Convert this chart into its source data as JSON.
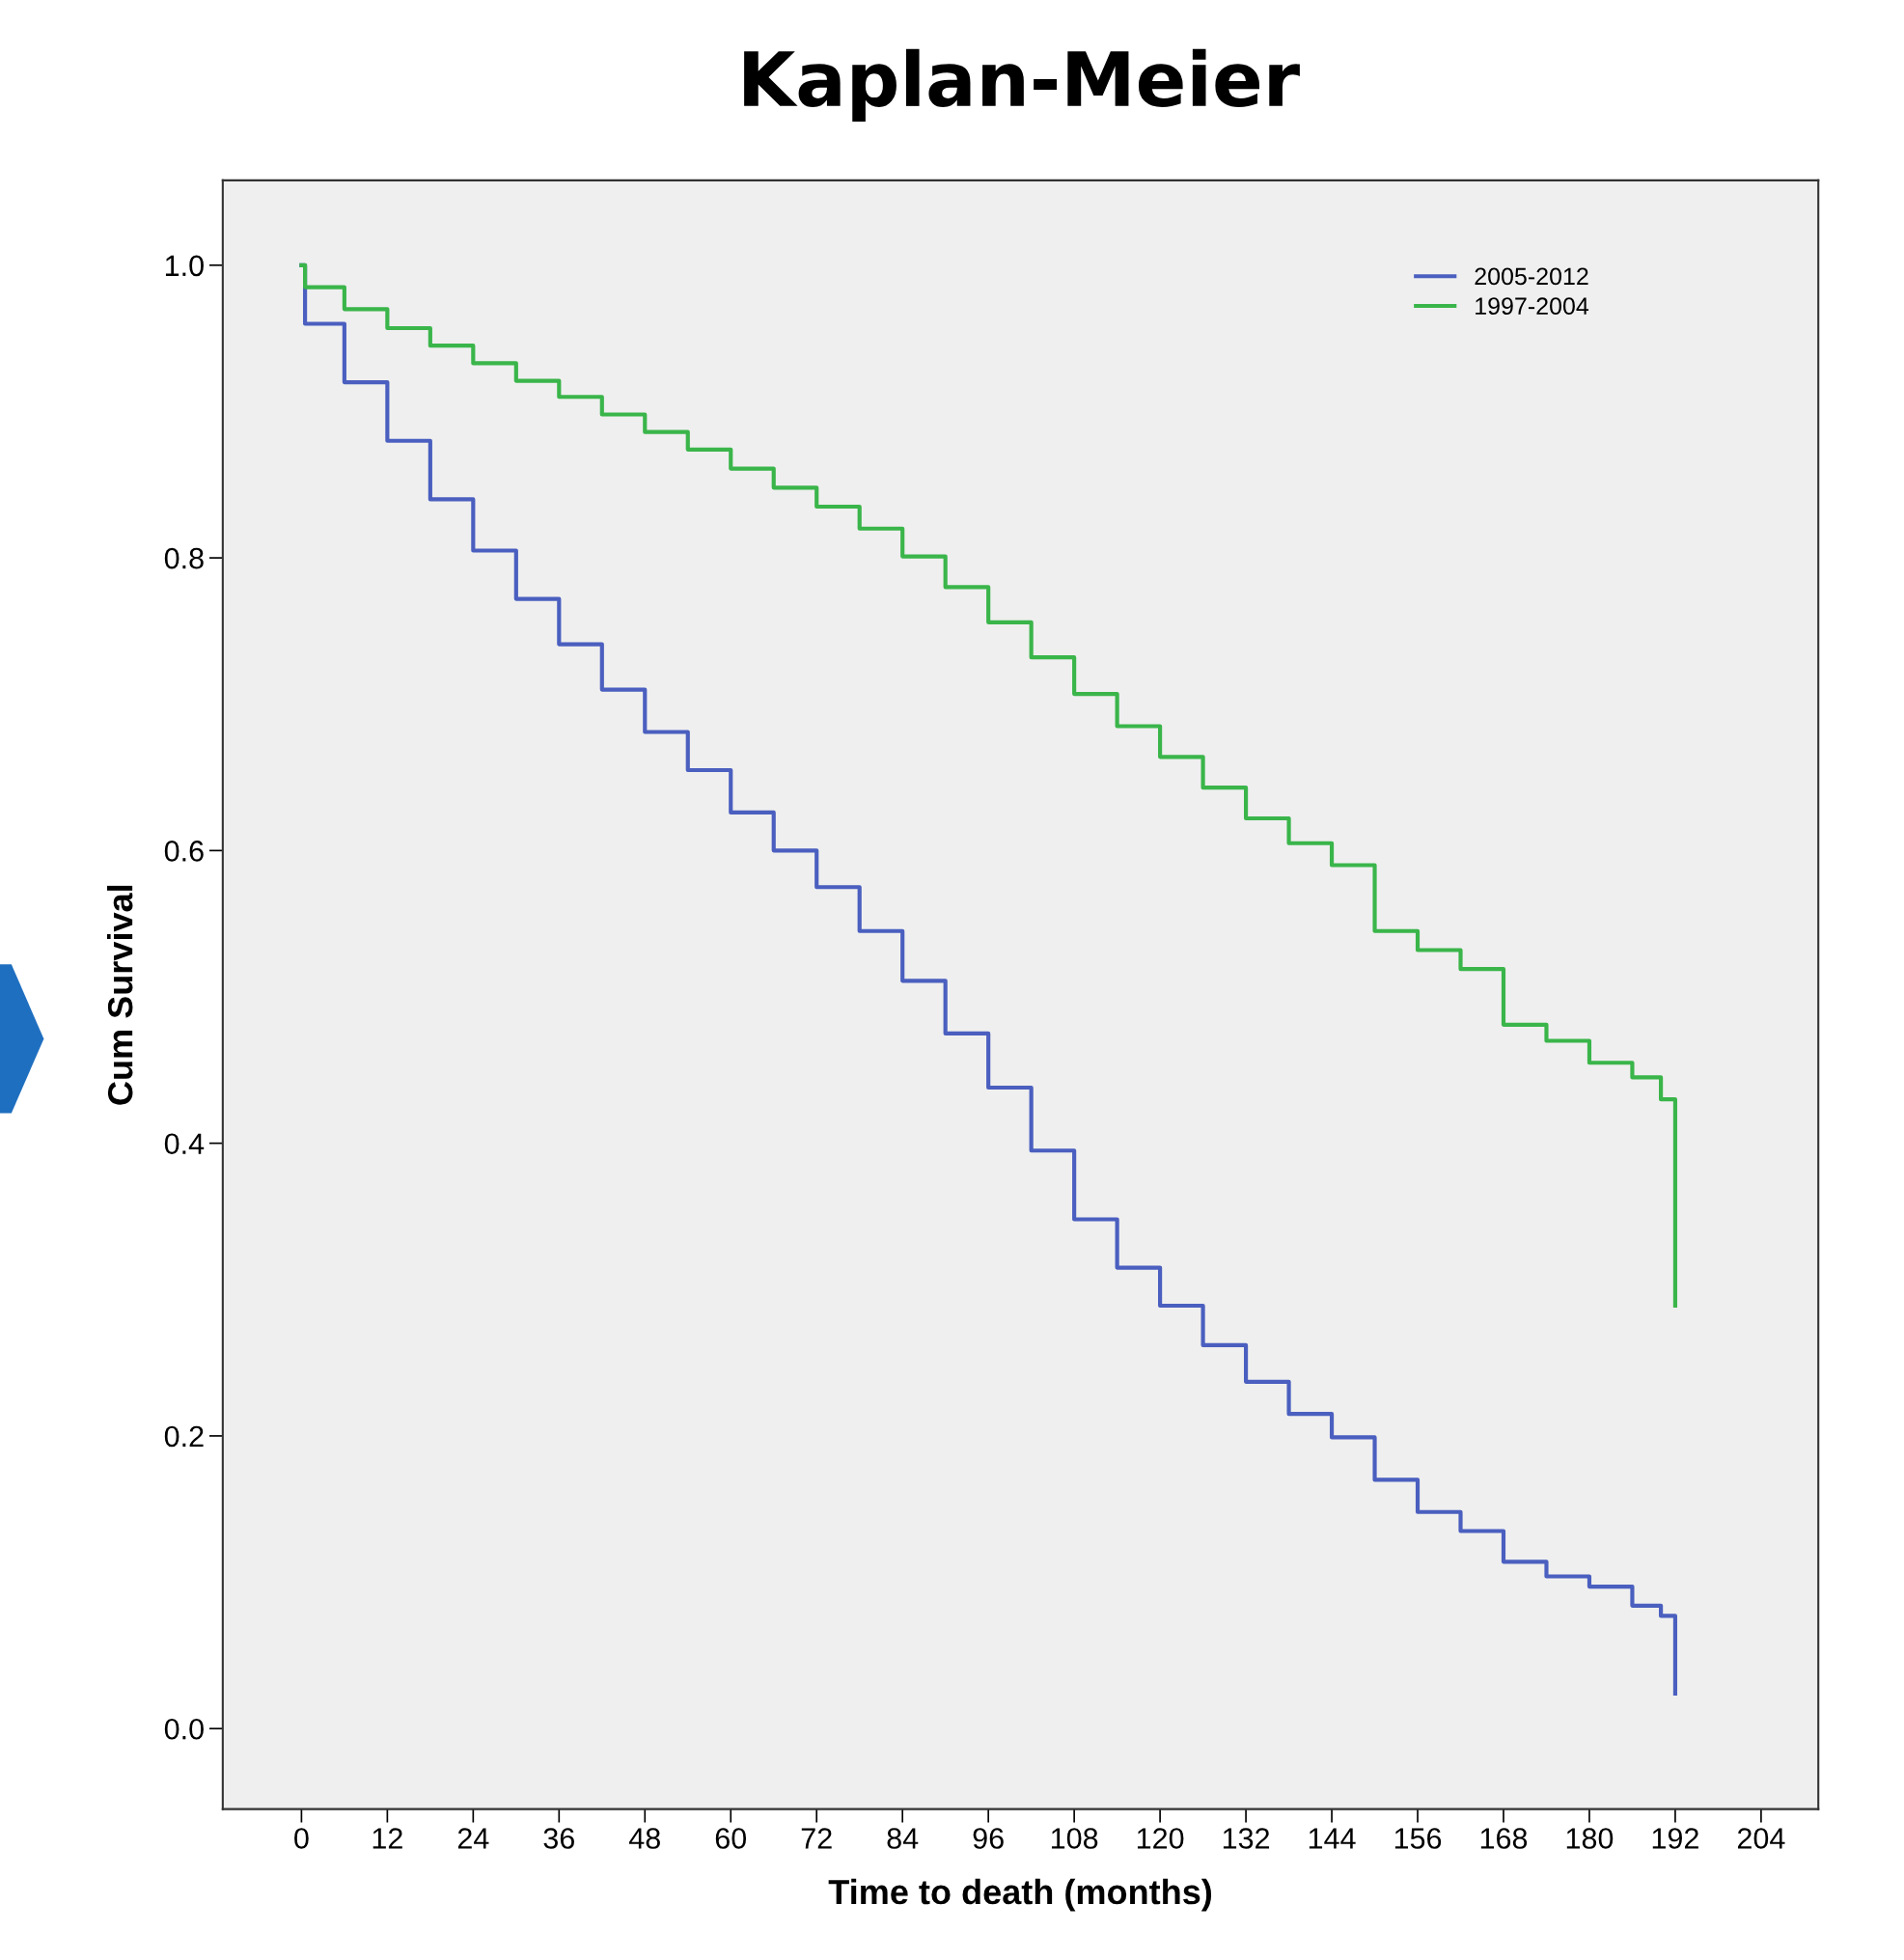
{
  "chart_data": {
    "type": "step",
    "title": "Kaplan-Meier",
    "xlabel": "Time to death (months)",
    "ylabel": "Cum Survival",
    "xlim": [
      -11,
      212
    ],
    "ylim": [
      -0.055,
      1.058
    ],
    "xticks": [
      0,
      12,
      24,
      36,
      48,
      60,
      72,
      84,
      96,
      108,
      120,
      132,
      144,
      156,
      168,
      180,
      192,
      204
    ],
    "yticks": [
      {
        "value": 0,
        "label": "0.0"
      },
      {
        "value": 0.2,
        "label": "0.2"
      },
      {
        "value": 0.4,
        "label": "0.4"
      },
      {
        "value": 0.6,
        "label": "0.6"
      },
      {
        "value": 0.8,
        "label": "0.8"
      },
      {
        "value": 1,
        "label": "1.0"
      }
    ],
    "grid": false,
    "legend": "top right",
    "line_style": "solid",
    "marker": "none",
    "series": [
      {
        "name": "2005-2012",
        "color": "#4a5fbf",
        "x": [
          0,
          0.5,
          6,
          12,
          18,
          24,
          30,
          36,
          42,
          48,
          54,
          60,
          66,
          72,
          78,
          84,
          90,
          96,
          102,
          108,
          114,
          120,
          126,
          132,
          138,
          144,
          150,
          156,
          162,
          168,
          174,
          180,
          186,
          190,
          192,
          192
        ],
        "values": [
          1.0,
          0.96,
          0.92,
          0.88,
          0.84,
          0.805,
          0.772,
          0.741,
          0.71,
          0.681,
          0.655,
          0.626,
          0.6,
          0.575,
          0.545,
          0.511,
          0.475,
          0.438,
          0.395,
          0.348,
          0.315,
          0.289,
          0.262,
          0.237,
          0.215,
          0.199,
          0.17,
          0.148,
          0.135,
          0.114,
          0.104,
          0.097,
          0.084,
          0.077,
          0.077,
          0.024
        ]
      },
      {
        "name": "1997-2004",
        "color": "#3ab54a",
        "x": [
          0,
          0.5,
          6,
          12,
          18,
          24,
          30,
          36,
          42,
          48,
          54,
          60,
          66,
          72,
          78,
          84,
          90,
          96,
          102,
          108,
          114,
          120,
          126,
          132,
          138,
          144,
          150,
          156,
          162,
          168,
          174,
          180,
          186,
          190,
          192,
          192
        ],
        "values": [
          1.0,
          0.985,
          0.97,
          0.957,
          0.945,
          0.933,
          0.921,
          0.91,
          0.898,
          0.886,
          0.874,
          0.861,
          0.848,
          0.835,
          0.82,
          0.801,
          0.78,
          0.756,
          0.732,
          0.707,
          0.685,
          0.664,
          0.643,
          0.622,
          0.605,
          0.59,
          0.545,
          0.532,
          0.519,
          0.481,
          0.47,
          0.455,
          0.445,
          0.43,
          0.43,
          0.289
        ]
      }
    ]
  }
}
